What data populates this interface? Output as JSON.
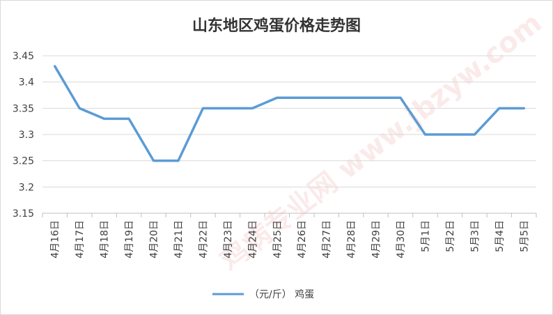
{
  "chart_data": {
    "type": "line",
    "title": "山东地区鸡蛋价格走势图",
    "categories": [
      "4月16日",
      "4月17日",
      "4月18日",
      "4月19日",
      "4月20日",
      "4月21日",
      "4月22日",
      "4月23日",
      "4月24日",
      "4月25日",
      "4月26日",
      "4月27日",
      "4月28日",
      "4月29日",
      "4月30日",
      "5月1日",
      "5月2日",
      "5月3日",
      "5月4日",
      "5月5日"
    ],
    "series": [
      {
        "name": "（元/斤） 鸡蛋",
        "values": [
          3.43,
          3.35,
          3.33,
          3.33,
          3.25,
          3.25,
          3.35,
          3.35,
          3.35,
          3.37,
          3.37,
          3.37,
          3.37,
          3.37,
          3.37,
          3.3,
          3.3,
          3.3,
          3.35,
          3.35
        ],
        "color": "#5b9bd5"
      }
    ],
    "ylim": [
      3.15,
      3.45
    ],
    "yticks": [
      "3.45",
      "3.4",
      "3.35",
      "3.3",
      "3.25",
      "3.2",
      "3.15"
    ],
    "grid": true,
    "legend": "bottom",
    "watermark": "鸡病专业网 www.jbzyw.com"
  }
}
